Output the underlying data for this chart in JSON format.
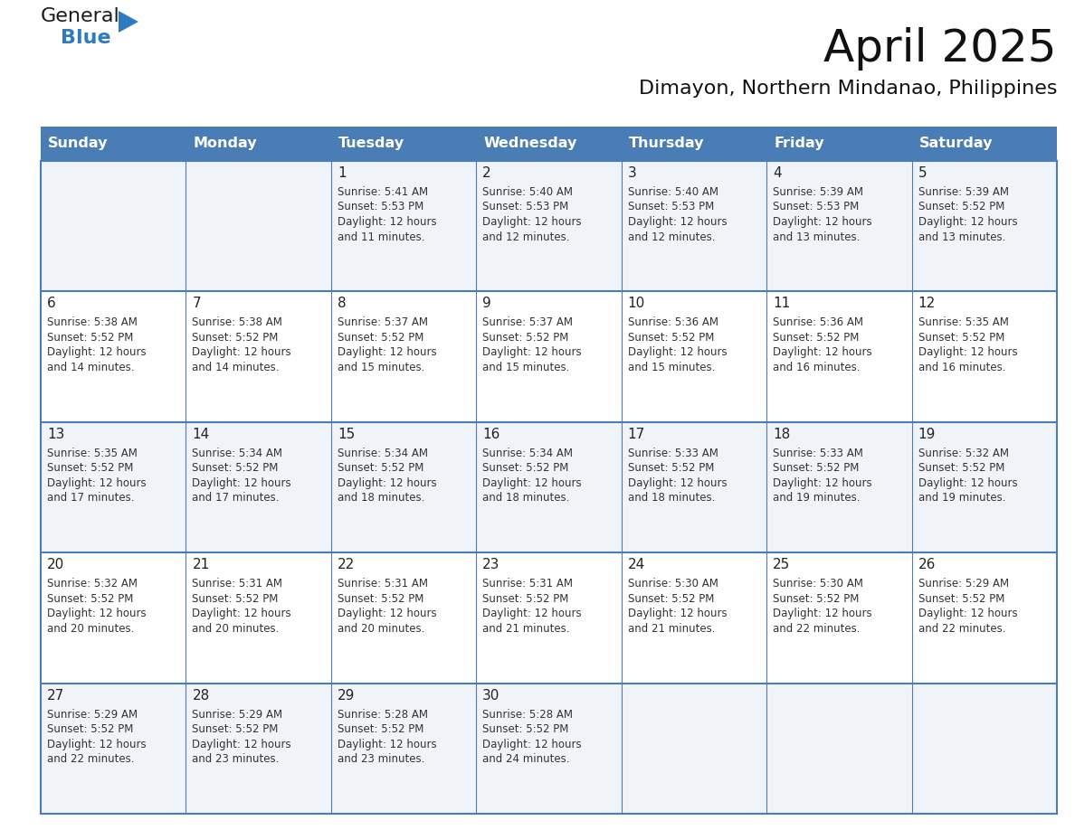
{
  "title": "April 2025",
  "subtitle": "Dimayon, Northern Mindanao, Philippines",
  "days_of_week": [
    "Sunday",
    "Monday",
    "Tuesday",
    "Wednesday",
    "Thursday",
    "Friday",
    "Saturday"
  ],
  "header_bg": "#4a7db5",
  "header_text": "#ffffff",
  "row_bg_even": "#f0f4f8",
  "row_bg_odd": "#ffffff",
  "text_color": "#333333",
  "day_number_color": "#222222",
  "line_color": "#4a7db5",
  "calendar_data": [
    [
      {
        "day": null,
        "sunrise": null,
        "sunset": null,
        "daylight": null
      },
      {
        "day": null,
        "sunrise": null,
        "sunset": null,
        "daylight": null
      },
      {
        "day": 1,
        "sunrise": "5:41 AM",
        "sunset": "5:53 PM",
        "daylight": "12 hours\nand 11 minutes."
      },
      {
        "day": 2,
        "sunrise": "5:40 AM",
        "sunset": "5:53 PM",
        "daylight": "12 hours\nand 12 minutes."
      },
      {
        "day": 3,
        "sunrise": "5:40 AM",
        "sunset": "5:53 PM",
        "daylight": "12 hours\nand 12 minutes."
      },
      {
        "day": 4,
        "sunrise": "5:39 AM",
        "sunset": "5:53 PM",
        "daylight": "12 hours\nand 13 minutes."
      },
      {
        "day": 5,
        "sunrise": "5:39 AM",
        "sunset": "5:52 PM",
        "daylight": "12 hours\nand 13 minutes."
      }
    ],
    [
      {
        "day": 6,
        "sunrise": "5:38 AM",
        "sunset": "5:52 PM",
        "daylight": "12 hours\nand 14 minutes."
      },
      {
        "day": 7,
        "sunrise": "5:38 AM",
        "sunset": "5:52 PM",
        "daylight": "12 hours\nand 14 minutes."
      },
      {
        "day": 8,
        "sunrise": "5:37 AM",
        "sunset": "5:52 PM",
        "daylight": "12 hours\nand 15 minutes."
      },
      {
        "day": 9,
        "sunrise": "5:37 AM",
        "sunset": "5:52 PM",
        "daylight": "12 hours\nand 15 minutes."
      },
      {
        "day": 10,
        "sunrise": "5:36 AM",
        "sunset": "5:52 PM",
        "daylight": "12 hours\nand 15 minutes."
      },
      {
        "day": 11,
        "sunrise": "5:36 AM",
        "sunset": "5:52 PM",
        "daylight": "12 hours\nand 16 minutes."
      },
      {
        "day": 12,
        "sunrise": "5:35 AM",
        "sunset": "5:52 PM",
        "daylight": "12 hours\nand 16 minutes."
      }
    ],
    [
      {
        "day": 13,
        "sunrise": "5:35 AM",
        "sunset": "5:52 PM",
        "daylight": "12 hours\nand 17 minutes."
      },
      {
        "day": 14,
        "sunrise": "5:34 AM",
        "sunset": "5:52 PM",
        "daylight": "12 hours\nand 17 minutes."
      },
      {
        "day": 15,
        "sunrise": "5:34 AM",
        "sunset": "5:52 PM",
        "daylight": "12 hours\nand 18 minutes."
      },
      {
        "day": 16,
        "sunrise": "5:34 AM",
        "sunset": "5:52 PM",
        "daylight": "12 hours\nand 18 minutes."
      },
      {
        "day": 17,
        "sunrise": "5:33 AM",
        "sunset": "5:52 PM",
        "daylight": "12 hours\nand 18 minutes."
      },
      {
        "day": 18,
        "sunrise": "5:33 AM",
        "sunset": "5:52 PM",
        "daylight": "12 hours\nand 19 minutes."
      },
      {
        "day": 19,
        "sunrise": "5:32 AM",
        "sunset": "5:52 PM",
        "daylight": "12 hours\nand 19 minutes."
      }
    ],
    [
      {
        "day": 20,
        "sunrise": "5:32 AM",
        "sunset": "5:52 PM",
        "daylight": "12 hours\nand 20 minutes."
      },
      {
        "day": 21,
        "sunrise": "5:31 AM",
        "sunset": "5:52 PM",
        "daylight": "12 hours\nand 20 minutes."
      },
      {
        "day": 22,
        "sunrise": "5:31 AM",
        "sunset": "5:52 PM",
        "daylight": "12 hours\nand 20 minutes."
      },
      {
        "day": 23,
        "sunrise": "5:31 AM",
        "sunset": "5:52 PM",
        "daylight": "12 hours\nand 21 minutes."
      },
      {
        "day": 24,
        "sunrise": "5:30 AM",
        "sunset": "5:52 PM",
        "daylight": "12 hours\nand 21 minutes."
      },
      {
        "day": 25,
        "sunrise": "5:30 AM",
        "sunset": "5:52 PM",
        "daylight": "12 hours\nand 22 minutes."
      },
      {
        "day": 26,
        "sunrise": "5:29 AM",
        "sunset": "5:52 PM",
        "daylight": "12 hours\nand 22 minutes."
      }
    ],
    [
      {
        "day": 27,
        "sunrise": "5:29 AM",
        "sunset": "5:52 PM",
        "daylight": "12 hours\nand 22 minutes."
      },
      {
        "day": 28,
        "sunrise": "5:29 AM",
        "sunset": "5:52 PM",
        "daylight": "12 hours\nand 23 minutes."
      },
      {
        "day": 29,
        "sunrise": "5:28 AM",
        "sunset": "5:52 PM",
        "daylight": "12 hours\nand 23 minutes."
      },
      {
        "day": 30,
        "sunrise": "5:28 AM",
        "sunset": "5:52 PM",
        "daylight": "12 hours\nand 24 minutes."
      },
      {
        "day": null,
        "sunrise": null,
        "sunset": null,
        "daylight": null
      },
      {
        "day": null,
        "sunrise": null,
        "sunset": null,
        "daylight": null
      },
      {
        "day": null,
        "sunrise": null,
        "sunset": null,
        "daylight": null
      }
    ]
  ],
  "logo_text_general": "General",
  "logo_text_blue": "Blue",
  "logo_color_general": "#1a1a1a",
  "logo_color_blue": "#2e7bc4",
  "logo_triangle_color": "#2e7bc4",
  "fig_width": 11.88,
  "fig_height": 9.18,
  "dpi": 100
}
